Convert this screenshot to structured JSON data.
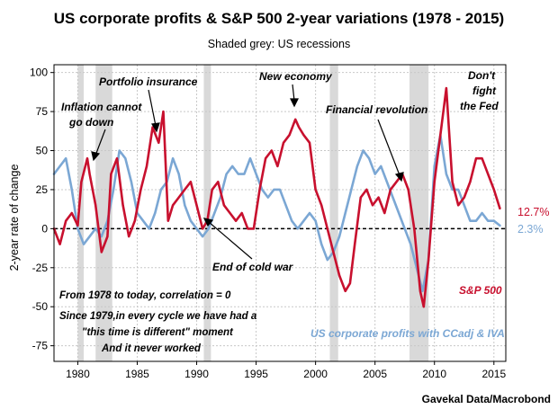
{
  "chart_data": {
    "type": "line",
    "title": "US corporate profits & S&P 500 2-year variations (1978 - 2015)",
    "subtitle": "Shaded grey: US recessions",
    "ylabel": "2-year rate of change",
    "xlabel": "",
    "xlim": [
      1978,
      2016
    ],
    "ylim": [
      -85,
      105
    ],
    "x_ticks": [
      1980,
      1985,
      1990,
      1995,
      2000,
      2005,
      2010,
      2015
    ],
    "y_ticks": [
      100,
      75,
      50,
      25,
      0,
      -25,
      -50,
      -75
    ],
    "grid": true,
    "recessions": [
      [
        1980.0,
        1980.5
      ],
      [
        1981.5,
        1982.9
      ],
      [
        1990.6,
        1991.2
      ],
      [
        2001.2,
        2001.9
      ],
      [
        2007.9,
        2009.5
      ]
    ],
    "series": [
      {
        "name": "S&P 500",
        "color": "#c8102e",
        "end_label": "12.7%",
        "x": [
          1978.0,
          1978.5,
          1979.0,
          1979.5,
          1980.0,
          1980.3,
          1980.8,
          1981.0,
          1981.5,
          1982.0,
          1982.5,
          1982.8,
          1983.3,
          1983.8,
          1984.3,
          1984.8,
          1985.3,
          1985.8,
          1986.3,
          1986.8,
          1987.2,
          1987.6,
          1988.0,
          1988.5,
          1989.0,
          1989.5,
          1990.0,
          1990.5,
          1990.9,
          1991.3,
          1991.8,
          1992.3,
          1992.8,
          1993.3,
          1993.8,
          1994.3,
          1994.8,
          1995.3,
          1995.8,
          1996.3,
          1996.8,
          1997.3,
          1997.8,
          1998.3,
          1998.6,
          1999.0,
          1999.5,
          2000.0,
          2000.5,
          2001.0,
          2001.5,
          2002.0,
          2002.5,
          2002.9,
          2003.3,
          2003.8,
          2004.3,
          2004.8,
          2005.3,
          2005.8,
          2006.3,
          2006.8,
          2007.3,
          2007.8,
          2008.3,
          2008.8,
          2009.1,
          2009.5,
          2010.0,
          2010.5,
          2011.0,
          2011.5,
          2012.0,
          2012.5,
          2013.0,
          2013.5,
          2014.0,
          2014.5,
          2015.0,
          2015.5
        ],
        "values": [
          0,
          -10,
          5,
          10,
          2,
          30,
          45,
          35,
          15,
          -15,
          -5,
          35,
          45,
          15,
          -5,
          5,
          25,
          40,
          65,
          55,
          75,
          5,
          15,
          20,
          25,
          30,
          15,
          0,
          5,
          25,
          30,
          15,
          10,
          5,
          10,
          0,
          0,
          25,
          45,
          50,
          40,
          55,
          60,
          70,
          65,
          60,
          55,
          25,
          15,
          0,
          -15,
          -30,
          -40,
          -35,
          -10,
          20,
          25,
          15,
          20,
          10,
          25,
          30,
          35,
          25,
          0,
          -40,
          -50,
          -20,
          30,
          60,
          90,
          30,
          15,
          20,
          30,
          45,
          45,
          35,
          25,
          13
        ]
      },
      {
        "name": "US corporate profits with CCadj & IVA",
        "color": "#7ba7d4",
        "end_label": "2.3%",
        "x": [
          1978.0,
          1978.5,
          1979.0,
          1979.5,
          1980.0,
          1980.5,
          1981.0,
          1981.5,
          1982.0,
          1982.5,
          1983.0,
          1983.5,
          1984.0,
          1984.5,
          1985.0,
          1985.5,
          1986.0,
          1986.5,
          1987.0,
          1987.5,
          1988.0,
          1988.5,
          1989.0,
          1989.5,
          1990.0,
          1990.5,
          1991.0,
          1991.5,
          1992.0,
          1992.5,
          1993.0,
          1993.5,
          1994.0,
          1994.5,
          1995.0,
          1995.5,
          1996.0,
          1996.5,
          1997.0,
          1997.5,
          1998.0,
          1998.5,
          1999.0,
          1999.5,
          2000.0,
          2000.5,
          2001.0,
          2001.5,
          2002.0,
          2002.5,
          2003.0,
          2003.5,
          2004.0,
          2004.5,
          2005.0,
          2005.5,
          2006.0,
          2006.5,
          2007.0,
          2007.5,
          2008.0,
          2008.5,
          2009.0,
          2009.5,
          2010.0,
          2010.5,
          2011.0,
          2011.5,
          2012.0,
          2012.5,
          2013.0,
          2013.5,
          2014.0,
          2014.5,
          2015.0,
          2015.5
        ],
        "values": [
          35,
          40,
          45,
          25,
          0,
          -10,
          -5,
          0,
          -5,
          5,
          25,
          50,
          45,
          30,
          10,
          5,
          0,
          10,
          25,
          30,
          45,
          35,
          15,
          5,
          0,
          -5,
          0,
          10,
          20,
          35,
          40,
          35,
          35,
          45,
          35,
          25,
          20,
          25,
          25,
          15,
          5,
          0,
          5,
          10,
          5,
          -10,
          -20,
          -15,
          -5,
          10,
          25,
          40,
          50,
          45,
          35,
          40,
          30,
          20,
          10,
          0,
          -10,
          -25,
          -40,
          -20,
          40,
          60,
          35,
          25,
          25,
          15,
          5,
          5,
          10,
          5,
          5,
          2
        ]
      }
    ],
    "annotations": {
      "inflation_l1": "Inflation cannot",
      "inflation_l2": "go down",
      "portfolio": "Portfolio insurance",
      "new_economy": "New economy",
      "financial": "Financial revolution",
      "fed_l1": "Don't",
      "fed_l2": "fight",
      "fed_l3": "the Fed",
      "cold_war": "End of cold war",
      "correlation": "From 1978 to today, correlation = 0",
      "cycle_l1": "Since 1979,in every cycle we have had a",
      "cycle_l2": "\"this time is different\" moment",
      "cycle_l3": "And it never worked"
    },
    "legend": {
      "sp500": "S&P 500",
      "profits": "US corporate profits with CCadj & IVA"
    },
    "source": "Gavekal Data/Macrobond"
  }
}
